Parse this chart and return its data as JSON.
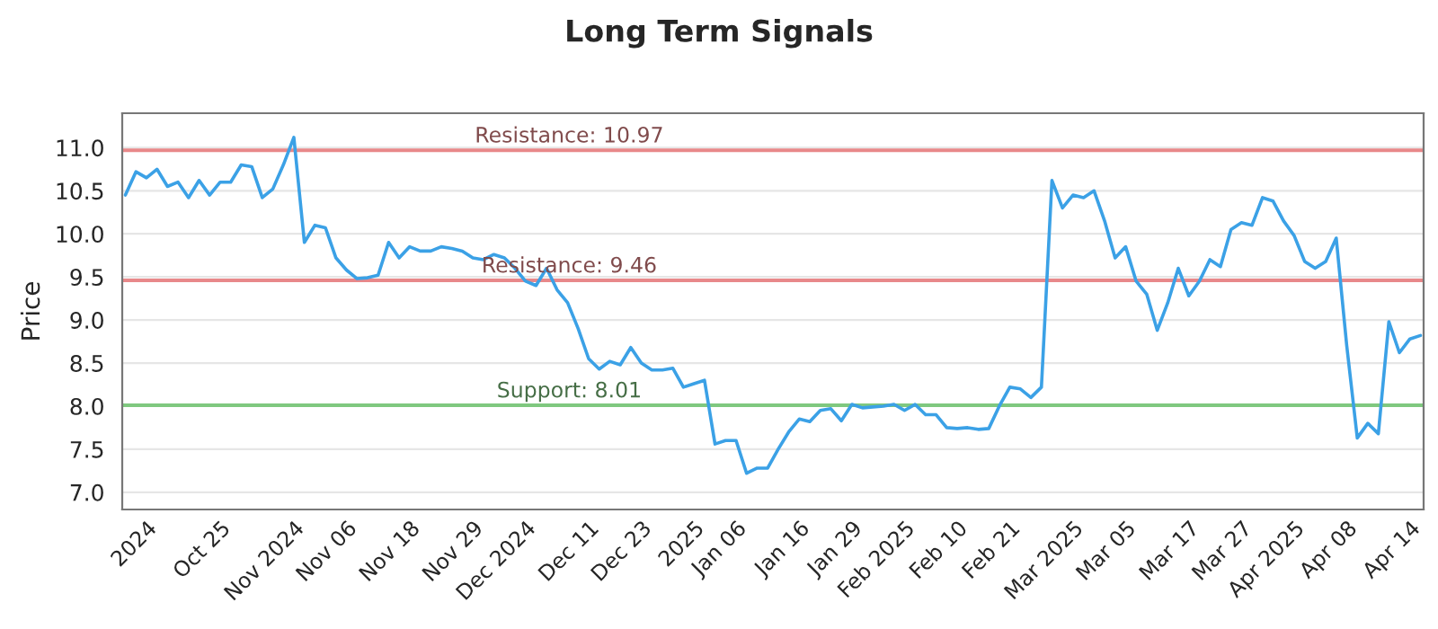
{
  "chart_data": {
    "type": "line",
    "title": "Long Term Signals",
    "ylabel": "Price",
    "categories": [
      null,
      null,
      "2024",
      null,
      null,
      null,
      null,
      null,
      null,
      "Oct 25",
      null,
      null,
      null,
      null,
      null,
      null,
      "Nov 2024",
      null,
      null,
      null,
      null,
      "Nov 06",
      null,
      null,
      null,
      null,
      null,
      "Nov 18",
      null,
      null,
      null,
      null,
      null,
      "Nov 29",
      null,
      null,
      null,
      null,
      "Dec 2024",
      null,
      null,
      null,
      null,
      null,
      "Dec 11",
      null,
      null,
      null,
      null,
      "Dec 23",
      null,
      null,
      null,
      null,
      "2025",
      null,
      null,
      null,
      "Jan 06",
      null,
      null,
      null,
      null,
      null,
      "Jan 16",
      null,
      null,
      null,
      null,
      "Jan 29",
      null,
      null,
      null,
      null,
      "Feb 2025",
      null,
      null,
      null,
      null,
      "Feb 10",
      null,
      null,
      null,
      null,
      "Feb 21",
      null,
      null,
      null,
      null,
      null,
      "Mar 2025",
      null,
      null,
      null,
      null,
      "Mar 05",
      null,
      null,
      null,
      null,
      null,
      "Mar 17",
      null,
      null,
      null,
      null,
      "Mar 27",
      null,
      null,
      null,
      null,
      "Apr 2025",
      null,
      null,
      null,
      null,
      "Apr 08",
      null,
      null,
      null,
      null,
      null,
      "Apr 14",
      null
    ],
    "series": [
      {
        "color": "#3ba1e6",
        "values": [
          10.45,
          10.72,
          10.65,
          10.75,
          10.55,
          10.6,
          10.42,
          10.62,
          10.45,
          10.6,
          10.6,
          10.8,
          10.78,
          10.42,
          10.52,
          10.8,
          11.12,
          9.9,
          10.1,
          10.07,
          9.72,
          9.58,
          9.48,
          9.49,
          9.52,
          9.9,
          9.72,
          9.85,
          9.8,
          9.8,
          9.85,
          9.83,
          9.8,
          9.72,
          9.7,
          9.76,
          9.72,
          9.6,
          9.45,
          9.4,
          9.6,
          9.35,
          9.2,
          8.9,
          8.55,
          8.43,
          8.52,
          8.48,
          8.68,
          8.5,
          8.42,
          8.42,
          8.44,
          8.22,
          8.26,
          8.3,
          7.56,
          7.6,
          7.6,
          7.22,
          7.28,
          7.28,
          7.5,
          7.7,
          7.85,
          7.82,
          7.95,
          7.97,
          7.83,
          8.02,
          7.98,
          7.99,
          8.0,
          8.02,
          7.95,
          8.02,
          7.9,
          7.9,
          7.75,
          7.74,
          7.75,
          7.73,
          7.74,
          8.0,
          8.22,
          8.2,
          8.1,
          8.22,
          10.62,
          10.3,
          10.45,
          10.42,
          10.5,
          10.15,
          9.72,
          9.85,
          9.45,
          9.3,
          8.88,
          9.2,
          9.6,
          9.28,
          9.45,
          9.7,
          9.62,
          10.05,
          10.13,
          10.1,
          10.42,
          10.38,
          10.15,
          9.98,
          9.68,
          9.6,
          9.68,
          9.95,
          8.7,
          7.63,
          7.8,
          7.68,
          8.98,
          8.62,
          8.78,
          8.82
        ]
      }
    ],
    "ylim": [
      6.8,
      11.4
    ],
    "yticks": [
      {
        "value": 7,
        "label": "7.0"
      },
      {
        "value": 7.5,
        "label": "7.5"
      },
      {
        "value": 8,
        "label": "8.0"
      },
      {
        "value": 8.5,
        "label": "8.5"
      },
      {
        "value": 9,
        "label": "9.0"
      },
      {
        "value": 9.5,
        "label": "9.5"
      },
      {
        "value": 10,
        "label": "10.0"
      },
      {
        "value": 10.5,
        "label": "10.5"
      },
      {
        "value": 11,
        "label": "11.0"
      }
    ],
    "grid": "y",
    "legend": false,
    "marker": "none",
    "line_style": "solid",
    "ref_lines": [
      {
        "axis": "y",
        "value": 10.97,
        "label": "Resistance: 10.97",
        "color": "#e8888a"
      },
      {
        "axis": "y",
        "value": 9.46,
        "label": "Resistance: 9.46",
        "color": "#e8888a"
      },
      {
        "axis": "y",
        "value": 8.01,
        "label": "Support: 8.01",
        "color": "#7fc87f"
      }
    ]
  }
}
